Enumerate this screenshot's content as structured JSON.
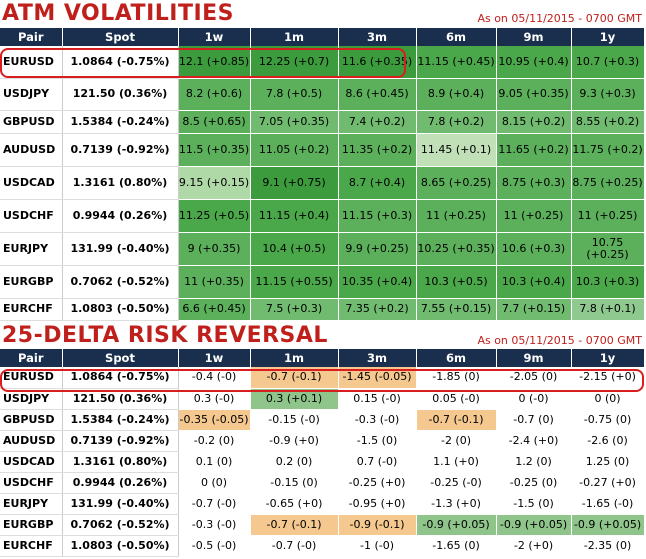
{
  "atm": {
    "title": "ATM VOLATILITIES",
    "as_of": "As on 05/11/2015 - 0700 GMT",
    "headers": [
      "Pair",
      "Spot",
      "1w",
      "1m",
      "3m",
      "6m",
      "9m",
      "1y"
    ],
    "rows": [
      {
        "pair": "EURUSD",
        "spot": "1.0864 (-0.75%)",
        "cells": [
          "12.1 (+0.85)",
          "12.25 (+0.7)",
          "11.6 (+0.35)",
          "11.15 (+0.45)",
          "10.95 (+0.4)",
          "10.7 (+0.3)"
        ]
      },
      {
        "pair": "USDJPY",
        "spot": "121.50 (0.36%)",
        "cells": [
          "8.2 (+0.6)",
          "7.8 (+0.5)",
          "8.6 (+0.45)",
          "8.9 (+0.4)",
          "9.05 (+0.35)",
          "9.3 (+0.3)"
        ]
      },
      {
        "pair": "GBPUSD",
        "spot": "1.5384 (-0.24%)",
        "cells": [
          "8.5 (+0.65)",
          "7.05 (+0.35)",
          "7.4 (+0.2)",
          "7.8 (+0.2)",
          "8.15 (+0.2)",
          "8.55 (+0.2)"
        ]
      },
      {
        "pair": "AUDUSD",
        "spot": "0.7139 (-0.92%)",
        "cells": [
          "11.5 (+0.35)",
          "11.05 (+0.2)",
          "11.35 (+0.2)",
          "11.45 (+0.1)",
          "11.65 (+0.2)",
          "11.75 (+0.2)"
        ]
      },
      {
        "pair": "USDCAD",
        "spot": "1.3161 (0.80%)",
        "cells": [
          "9.15 (+0.15)",
          "9.1 (+0.75)",
          "8.7 (+0.4)",
          "8.65 (+0.25)",
          "8.75 (+0.3)",
          "8.75 (+0.25)"
        ]
      },
      {
        "pair": "USDCHF",
        "spot": "0.9944 (0.26%)",
        "cells": [
          "11.25 (+0.5)",
          "11.15 (+0.4)",
          "11.15 (+0.3)",
          "11 (+0.25)",
          "11 (+0.25)",
          "11 (+0.25)"
        ]
      },
      {
        "pair": "EURJPY",
        "spot": "131.99 (-0.40%)",
        "cells": [
          "9 (+0.35)",
          "10.4 (+0.5)",
          "9.9 (+0.25)",
          "10.25 (+0.35)",
          "10.6 (+0.3)",
          "10.75 (+0.25)"
        ]
      },
      {
        "pair": "EURGBP",
        "spot": "0.7062 (-0.52%)",
        "cells": [
          "11 (+0.35)",
          "11.15 (+0.55)",
          "10.35 (+0.4)",
          "10.3 (+0.5)",
          "10.3 (+0.4)",
          "10.3 (+0.3)"
        ]
      },
      {
        "pair": "EURCHF",
        "spot": "1.0803 (-0.50%)",
        "cells": [
          "6.6 (+0.45)",
          "7.5 (+0.3)",
          "7.35 (+0.2)",
          "7.55 (+0.15)",
          "7.7 (+0.15)",
          "7.8 (+0.1)"
        ]
      }
    ]
  },
  "rr": {
    "title": "25-DELTA RISK REVERSAL",
    "as_of": "As on 05/11/2015 - 0700 GMT",
    "headers": [
      "Pair",
      "Spot",
      "1w",
      "1m",
      "3m",
      "6m",
      "9m",
      "1y"
    ],
    "rows": [
      {
        "pair": "EURUSD",
        "spot": "1.0864 (-0.75%)",
        "cells": [
          "-0.4 (-0)",
          "-0.7 (-0.1)",
          "-1.45 (-0.05)",
          "-1.85 (0)",
          "-2.05 (0)",
          "-2.15 (+0)"
        ]
      },
      {
        "pair": "USDJPY",
        "spot": "121.50 (0.36%)",
        "cells": [
          "0.3 (-0)",
          "0.3 (+0.1)",
          "0.15 (-0)",
          "0.05 (-0)",
          "0 (-0)",
          "0 (0)"
        ]
      },
      {
        "pair": "GBPUSD",
        "spot": "1.5384 (-0.24%)",
        "cells": [
          "-0.35 (-0.05)",
          "-0.15 (-0)",
          "-0.3 (-0)",
          "-0.7 (-0.1)",
          "-0.7 (0)",
          "-0.75 (0)"
        ]
      },
      {
        "pair": "AUDUSD",
        "spot": "0.7139 (-0.92%)",
        "cells": [
          "-0.2 (0)",
          "-0.9 (+0)",
          "-1.5 (0)",
          "-2 (0)",
          "-2.4 (+0)",
          "-2.6 (0)"
        ]
      },
      {
        "pair": "USDCAD",
        "spot": "1.3161 (0.80%)",
        "cells": [
          "0.1 (0)",
          "0.2 (0)",
          "0.7 (-0)",
          "1.1 (+0)",
          "1.2 (0)",
          "1.25 (0)"
        ]
      },
      {
        "pair": "USDCHF",
        "spot": "0.9944 (0.26%)",
        "cells": [
          "0 (0)",
          "-0.15 (0)",
          "-0.25 (+0)",
          "-0.25 (-0)",
          "-0.25 (0)",
          "-0.27 (+0)"
        ]
      },
      {
        "pair": "EURJPY",
        "spot": "131.99 (-0.40%)",
        "cells": [
          "-0.7 (-0)",
          "-0.65 (+0)",
          "-0.95 (+0)",
          "-1.3 (+0)",
          "-1.5 (0)",
          "-1.65 (-0)"
        ]
      },
      {
        "pair": "EURGBP",
        "spot": "0.7062 (-0.52%)",
        "cells": [
          "-0.3 (-0)",
          "-0.7 (-0.1)",
          "-0.9 (-0.1)",
          "-0.9 (+0.05)",
          "-0.9 (+0.05)",
          "-0.9 (+0.05)"
        ]
      },
      {
        "pair": "EURCHF",
        "spot": "1.0803 (-0.50%)",
        "cells": [
          "-0.5 (-0)",
          "-0.7 (-0)",
          "-1 (-0)",
          "-1.65 (0)",
          "-2 (+0)",
          "-2.35 (0)"
        ]
      }
    ]
  },
  "colors": {
    "title_red": "#c0201c",
    "header_navy": "#1a2f4e",
    "highlight_red": "#d81e1e",
    "green_dark": "#3c9b3c",
    "green_light": "#c2e0b8",
    "orange": "#f4c88e"
  }
}
